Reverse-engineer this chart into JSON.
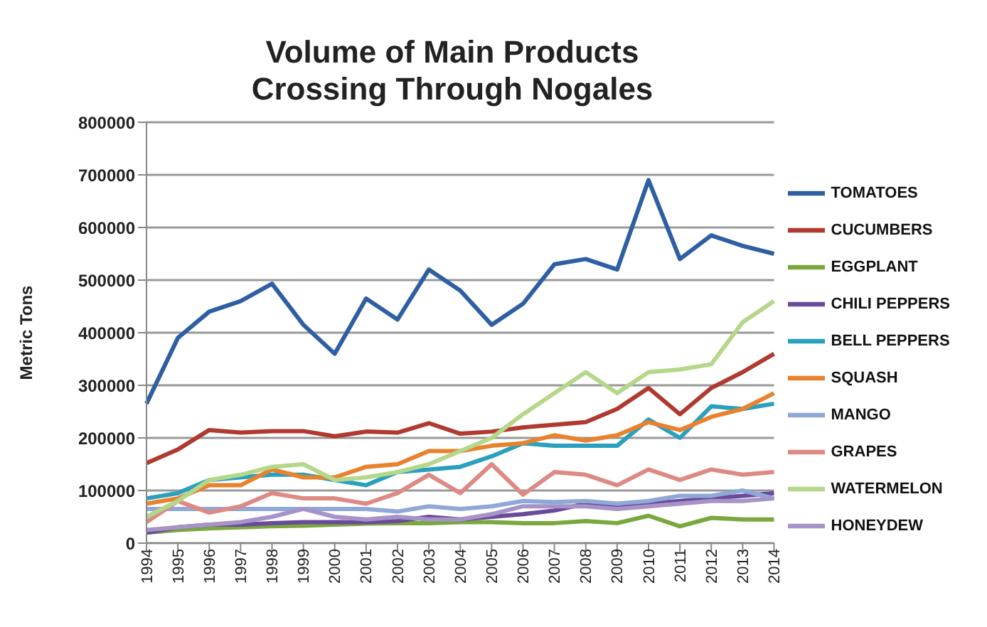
{
  "chart_data": {
    "type": "line",
    "title": "Volume of Main Products\nCrossing Through Nogales",
    "ylabel": "Metric Tons",
    "categories": [
      "1994",
      "1995",
      "1996",
      "1997",
      "1998",
      "1999",
      "2000",
      "2001",
      "2002",
      "2003",
      "2004",
      "2005",
      "2006",
      "2007",
      "2008",
      "2009",
      "2010",
      "2011",
      "2012",
      "2013",
      "2014"
    ],
    "ylim": [
      0,
      800000
    ],
    "yticks": [
      0,
      100000,
      200000,
      300000,
      400000,
      500000,
      600000,
      700000,
      800000
    ],
    "grid": "y",
    "legend": "right",
    "marker": "none",
    "line_style": "solid",
    "series": [
      {
        "name": "TOMATOES",
        "color": "#2e5fa3",
        "values": [
          265000,
          390000,
          440000,
          460000,
          493000,
          415000,
          360000,
          465000,
          425000,
          520000,
          480000,
          415000,
          455000,
          530000,
          540000,
          520000,
          690000,
          540000,
          585000,
          565000,
          550000
        ]
      },
      {
        "name": "CUCUMBERS",
        "color": "#b03a30",
        "values": [
          152000,
          178000,
          215000,
          210000,
          213000,
          213000,
          203000,
          212000,
          210000,
          228000,
          208000,
          212000,
          220000,
          225000,
          230000,
          255000,
          295000,
          245000,
          295000,
          325000,
          360000
        ]
      },
      {
        "name": "EGGPLANT",
        "color": "#7aa83e",
        "values": [
          20000,
          25000,
          28000,
          30000,
          32000,
          33000,
          35000,
          37000,
          38000,
          38000,
          40000,
          40000,
          38000,
          38000,
          42000,
          38000,
          52000,
          32000,
          48000,
          45000,
          45000
        ]
      },
      {
        "name": "CHILI PEPPERS",
        "color": "#6a4a9a",
        "values": [
          20000,
          30000,
          35000,
          35000,
          38000,
          40000,
          40000,
          40000,
          42000,
          50000,
          45000,
          50000,
          55000,
          62000,
          75000,
          70000,
          75000,
          80000,
          85000,
          90000,
          95000
        ]
      },
      {
        "name": "BELL PEPPERS",
        "color": "#2aa0bf",
        "values": [
          85000,
          95000,
          120000,
          125000,
          130000,
          130000,
          120000,
          110000,
          135000,
          140000,
          145000,
          165000,
          190000,
          185000,
          185000,
          185000,
          235000,
          200000,
          260000,
          255000,
          265000
        ]
      },
      {
        "name": "SQUASH",
        "color": "#e8822e",
        "values": [
          75000,
          85000,
          110000,
          110000,
          140000,
          125000,
          125000,
          145000,
          150000,
          175000,
          175000,
          185000,
          190000,
          205000,
          195000,
          205000,
          230000,
          215000,
          240000,
          255000,
          285000
        ]
      },
      {
        "name": "MANGO",
        "color": "#8fa8d6",
        "values": [
          65000,
          65000,
          65000,
          65000,
          65000,
          65000,
          65000,
          65000,
          60000,
          70000,
          65000,
          70000,
          80000,
          78000,
          80000,
          75000,
          80000,
          90000,
          90000,
          100000,
          85000
        ]
      },
      {
        "name": "GRAPES",
        "color": "#dd8a84",
        "values": [
          40000,
          80000,
          58000,
          70000,
          95000,
          85000,
          85000,
          75000,
          95000,
          130000,
          95000,
          150000,
          92000,
          135000,
          130000,
          110000,
          140000,
          120000,
          140000,
          130000,
          135000
        ]
      },
      {
        "name": "WATERMELON",
        "color": "#b5d78a",
        "values": [
          50000,
          80000,
          120000,
          130000,
          145000,
          150000,
          120000,
          125000,
          135000,
          150000,
          175000,
          200000,
          245000,
          285000,
          325000,
          285000,
          325000,
          330000,
          340000,
          420000,
          460000
        ]
      },
      {
        "name": "HONEYDEW",
        "color": "#a694c8",
        "values": [
          25000,
          30000,
          35000,
          40000,
          50000,
          65000,
          50000,
          45000,
          50000,
          45000,
          45000,
          55000,
          70000,
          70000,
          70000,
          65000,
          70000,
          75000,
          80000,
          80000,
          85000
        ]
      }
    ]
  }
}
